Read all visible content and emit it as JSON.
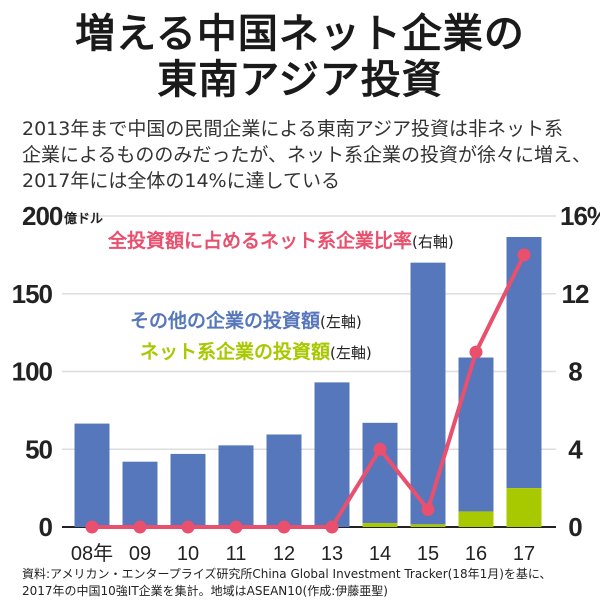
{
  "title": [
    "増える中国ネット企業の",
    "東南アジア投資"
  ],
  "subtitle": [
    "2013年まで中国の民間企業による東南アジア投資は非ネット系",
    "企業によるもののみだったが、ネット系企業の投資が徐々に増え、",
    "2017年には全体の14%に達している"
  ],
  "source": [
    "資料:アメリカン・エンタープライズ研究所China Global Investment Tracker(18年1月)を基に、",
    "2017年の中国10強IT企業を集計。地域はASEAN10(作成:伊藤亜聖)"
  ],
  "chart_data": {
    "type": "bar",
    "stacked": true,
    "categories": [
      "08年",
      "09",
      "10",
      "11",
      "12",
      "13",
      "14",
      "15",
      "16",
      "17"
    ],
    "left_axis": {
      "unit": "億ドル",
      "range": [
        0,
        200
      ],
      "ticks": [
        "0",
        "50",
        "100",
        "150",
        "200"
      ]
    },
    "right_axis": {
      "unit": "%",
      "range": [
        0,
        16
      ],
      "ticks": [
        "0",
        "4",
        "8",
        "12",
        "16"
      ]
    },
    "grid": true,
    "series": [
      {
        "name": "ネット系企業の投資額",
        "axis_note": "(左軸)",
        "kind": "bar",
        "color": "#a8c800",
        "values": [
          0,
          0,
          0,
          0,
          0,
          0,
          2.5,
          1.7,
          10,
          25
        ]
      },
      {
        "name": "その他の企業の投資額",
        "axis_note": "(左軸)",
        "kind": "bar",
        "color": "#5677bb",
        "values": [
          66.5,
          42,
          47,
          52.5,
          59.5,
          93,
          64.5,
          168.3,
          99,
          161.5
        ]
      },
      {
        "name": "全投資額に占めるネット系企業比率",
        "axis_note": "(右軸)",
        "kind": "line",
        "color": "#e8506e",
        "values": [
          0,
          0,
          0,
          0,
          0,
          0,
          4.0,
          0.9,
          9.0,
          14.0
        ]
      }
    ]
  }
}
